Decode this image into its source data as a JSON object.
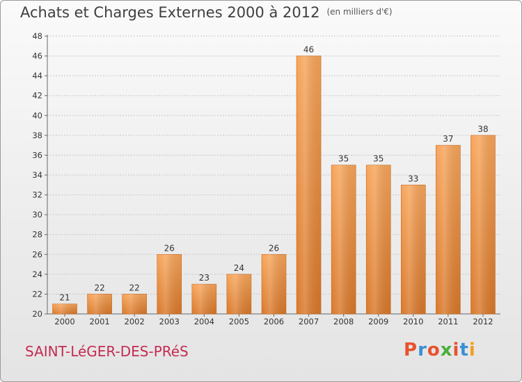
{
  "header": {
    "title": "Achats et Charges Externes 2000 à 2012",
    "unit": "(en milliers d'€)"
  },
  "footer": {
    "commune": "SAINT-LéGER-DES-PRéS",
    "logo_text": "Proxiti",
    "logo_colors": [
      "#e8522f",
      "#3a8fd6",
      "#e8522f",
      "#4cae3c",
      "#e8522f",
      "#3a8fd6",
      "#f0a01e"
    ]
  },
  "colors": {
    "bar_light": "#f7a55a",
    "bar_dark": "#d9782a",
    "bar_edge": "#c86a22",
    "grid": "#c8c8c8",
    "commune": "#c42c51"
  },
  "chart_data": {
    "type": "bar",
    "categories": [
      "2000",
      "2001",
      "2002",
      "2003",
      "2004",
      "2005",
      "2006",
      "2007",
      "2008",
      "2009",
      "2010",
      "2011",
      "2012"
    ],
    "values": [
      21,
      22,
      22,
      26,
      23,
      24,
      26,
      46,
      35,
      35,
      33,
      37,
      38
    ],
    "ylim": [
      20,
      48
    ],
    "yticks": [
      20,
      22,
      24,
      26,
      28,
      30,
      32,
      34,
      36,
      38,
      40,
      42,
      44,
      46,
      48
    ],
    "grid": true,
    "data_labels": true
  }
}
